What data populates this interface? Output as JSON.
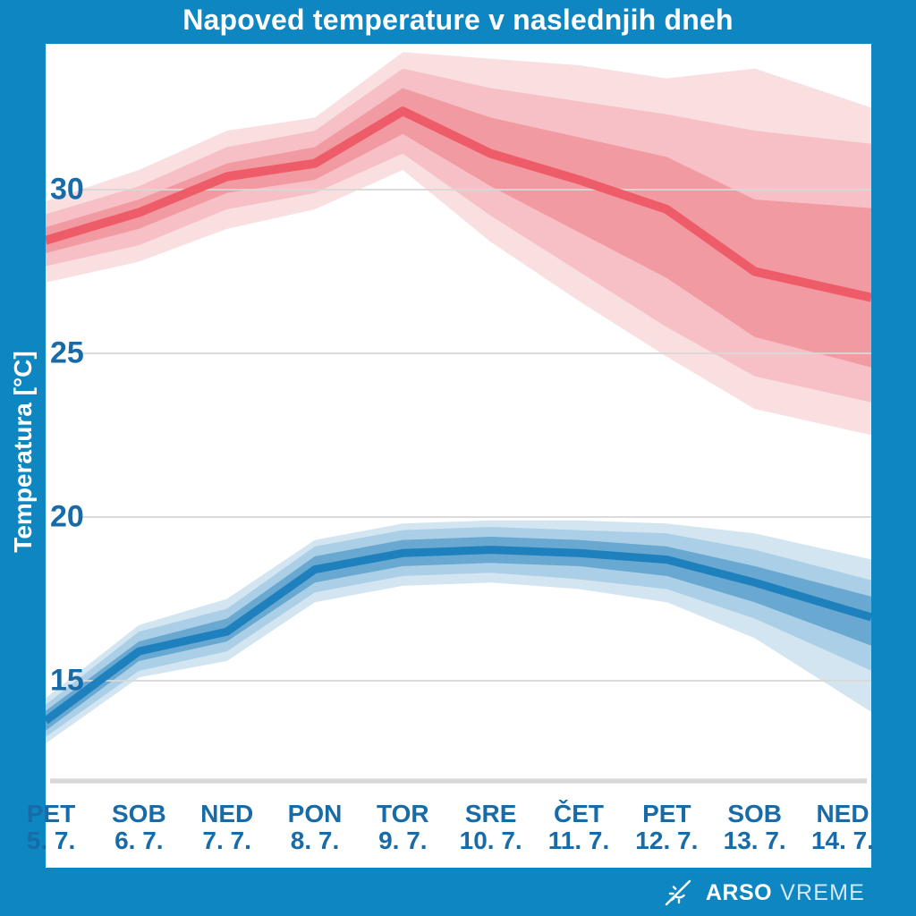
{
  "title": "Napoved temperature v naslednjih dneh",
  "y_axis_title": "Temperatura [°C]",
  "branding": {
    "icon": "sun-crossed-icon",
    "agency": "ARSO",
    "product": "VREME"
  },
  "colors": {
    "frame_blue": "#0D86C2",
    "axis_label_blue": "#186BA6",
    "gridline": "#D7D7D7",
    "baseline": "#D9D9D9",
    "white": "#FFFFFF"
  },
  "chart_data": {
    "type": "line",
    "title": "Napoved temperature v naslednjih dneh",
    "xlabel": "",
    "ylabel": "Temperatura [°C]",
    "yticks": [
      30,
      25,
      20,
      15
    ],
    "ylim_visible": [
      12,
      34.5
    ],
    "grid": true,
    "legend": "none",
    "days": [
      {
        "name": "PET",
        "date": "5. 7."
      },
      {
        "name": "SOB",
        "date": "6. 7."
      },
      {
        "name": "NED",
        "date": "7. 7."
      },
      {
        "name": "PON",
        "date": "8. 7."
      },
      {
        "name": "TOR",
        "date": "9. 7."
      },
      {
        "name": "SRE",
        "date": "10. 7."
      },
      {
        "name": "ČET",
        "date": "11. 7."
      },
      {
        "name": "PET",
        "date": "12. 7."
      },
      {
        "name": "SOB",
        "date": "13. 7."
      },
      {
        "name": "NED",
        "date": "14. 7."
      }
    ],
    "series": [
      {
        "name": "max-temperature",
        "color": "#EE5C69",
        "band_colors": {
          "outer": "#FADFE1",
          "middle": "#F6C0C6",
          "inner": "#F29AA1"
        },
        "median": [
          28.5,
          29.3,
          30.4,
          30.8,
          32.4,
          31.1,
          30.3,
          29.4,
          27.5,
          26.9
        ],
        "bands": {
          "inner": {
            "low": [
              28.1,
              28.8,
              29.9,
              30.3,
              31.7,
              30.1,
              28.7,
              27.3,
              25.5,
              24.8
            ],
            "high": [
              28.9,
              29.7,
              30.8,
              31.3,
              33.1,
              32.2,
              31.6,
              31.0,
              29.7,
              29.5
            ]
          },
          "middle": {
            "low": [
              27.7,
              28.3,
              29.4,
              29.9,
              31.1,
              29.2,
              27.5,
              25.8,
              24.3,
              23.7
            ],
            "high": [
              29.3,
              30.1,
              31.3,
              31.8,
              33.7,
              33.1,
              32.7,
              32.3,
              31.8,
              31.5
            ]
          },
          "outer": {
            "low": [
              27.2,
              27.8,
              28.8,
              29.4,
              30.6,
              28.4,
              26.6,
              24.9,
              23.3,
              22.7
            ],
            "high": [
              29.7,
              30.6,
              31.8,
              32.2,
              34.2,
              34.0,
              33.8,
              33.4,
              33.7,
              32.8
            ]
          }
        }
      },
      {
        "name": "min-temperature",
        "color": "#1E80BC",
        "band_colors": {
          "outer": "#D3E5F1",
          "middle": "#ABCFE6",
          "inner": "#68A8D1"
        },
        "median": [
          13.9,
          15.9,
          16.5,
          18.4,
          18.9,
          19.0,
          18.9,
          18.7,
          18.0,
          17.2
        ],
        "bands": {
          "inner": {
            "low": [
              13.6,
              15.6,
              16.2,
              18.0,
              18.5,
              18.6,
              18.5,
              18.2,
              17.4,
              16.4
            ],
            "high": [
              14.2,
              16.2,
              16.9,
              18.8,
              19.3,
              19.4,
              19.3,
              19.1,
              18.5,
              17.8
            ]
          },
          "middle": {
            "low": [
              13.4,
              15.3,
              15.9,
              17.7,
              18.2,
              18.3,
              18.1,
              17.8,
              16.9,
              15.7
            ],
            "high": [
              14.4,
              16.5,
              17.2,
              19.1,
              19.6,
              19.7,
              19.6,
              19.5,
              19.0,
              18.3
            ]
          },
          "outer": {
            "low": [
              13.2,
              15.1,
              15.6,
              17.4,
              17.9,
              18.0,
              17.8,
              17.4,
              16.3,
              14.6
            ],
            "high": [
              14.6,
              16.7,
              17.5,
              19.3,
              19.8,
              19.9,
              19.9,
              19.8,
              19.5,
              18.9
            ]
          }
        }
      }
    ]
  }
}
